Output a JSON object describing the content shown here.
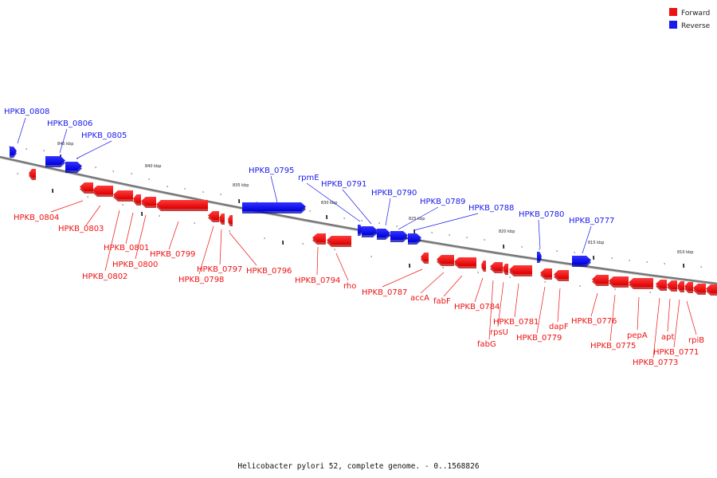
{
  "colors": {
    "forward": "#ee1111",
    "forward_dark": "#b80000",
    "reverse": "#1a1aee",
    "reverse_dark": "#0000aa",
    "backbone": "#777777"
  },
  "legend": {
    "forward": "Forward",
    "reverse": "Reverse"
  },
  "caption": "Helicobacter pylori 52, complete genome. - 0..1568826",
  "scale_labels": [
    "845 kbp",
    "840 kbp",
    "835 kbp",
    "830 kbp",
    "825 kbp",
    "820 kbp",
    "815 kbp",
    "810 kbp"
  ],
  "reverse_genes": [
    "HPKB_0808",
    "HPKB_0806",
    "HPKB_0805",
    "HPKB_0795",
    "rpmE",
    "HPKB_0791",
    "HPKB_0790",
    "HPKB_0789",
    "HPKB_0788",
    "HPKB_0780",
    "HPKB_0777"
  ],
  "forward_genes": [
    "HPKB_0804",
    "HPKB_0803",
    "HPKB_0802",
    "HPKB_0801",
    "HPKB_0800",
    "HPKB_0799",
    "HPKB_0798",
    "HPKB_0797",
    "HPKB_0796",
    "HPKB_0794",
    "rho",
    "HPKB_0787",
    "accA",
    "fabF",
    "HPKB_0784",
    "fabG",
    "rpsU",
    "HPKB_0781",
    "HPKB_0779",
    "dapF",
    "HPKB_0776",
    "HPKB_0775",
    "pepA",
    "HPKB_0773",
    "apt",
    "HPKB_0771",
    "rpiB"
  ]
}
